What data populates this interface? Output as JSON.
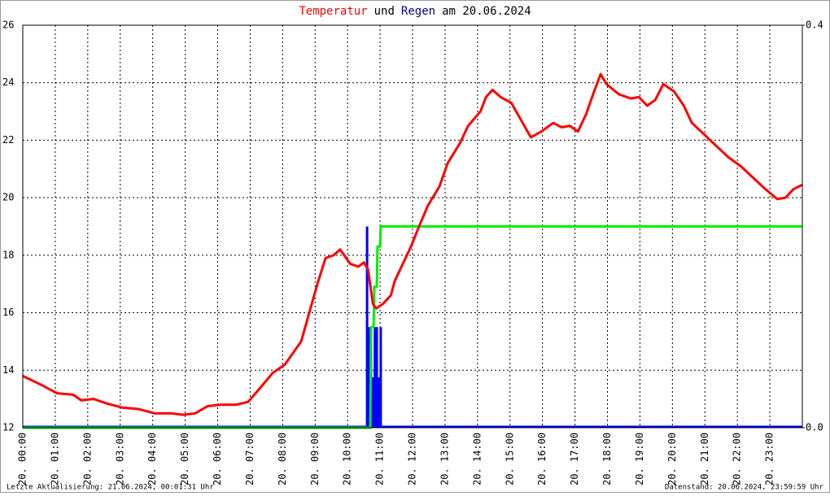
{
  "chart_data": {
    "type": "line",
    "title_parts": [
      "Temperatur",
      "und",
      "Regen",
      "am 20.06.2024"
    ],
    "title_colors": [
      "#ff0000",
      "#000000",
      "#000080",
      "#000000"
    ],
    "footer_left": "Letzte Aktualisierung: 21.06.2024, 00:01:31 Uhr",
    "footer_right": "Datenstand: 20.06.2024, 23:59:59 Uhr",
    "xlim": [
      0,
      24
    ],
    "xticks": [
      {
        "value": 0,
        "label": "20. 00:00"
      },
      {
        "value": 1,
        "label": "20. 01:00"
      },
      {
        "value": 2,
        "label": "20. 02:00"
      },
      {
        "value": 3,
        "label": "20. 03:00"
      },
      {
        "value": 4,
        "label": "20. 04:00"
      },
      {
        "value": 5,
        "label": "20. 05:00"
      },
      {
        "value": 6,
        "label": "20. 06:00"
      },
      {
        "value": 7,
        "label": "20. 07:00"
      },
      {
        "value": 8,
        "label": "20. 08:00"
      },
      {
        "value": 9,
        "label": "20. 09:00"
      },
      {
        "value": 10,
        "label": "20. 10:00"
      },
      {
        "value": 11,
        "label": "20. 11:00"
      },
      {
        "value": 12,
        "label": "20. 12:00"
      },
      {
        "value": 13,
        "label": "20. 13:00"
      },
      {
        "value": 14,
        "label": "20. 14:00"
      },
      {
        "value": 15,
        "label": "20. 15:00"
      },
      {
        "value": 16,
        "label": "20. 16:00"
      },
      {
        "value": 17,
        "label": "20. 17:00"
      },
      {
        "value": 18,
        "label": "20. 18:00"
      },
      {
        "value": 19,
        "label": "20. 19:00"
      },
      {
        "value": 20,
        "label": "20. 20:00"
      },
      {
        "value": 21,
        "label": "20. 21:00"
      },
      {
        "value": 22,
        "label": "20. 22:00"
      },
      {
        "value": 23,
        "label": "20. 23:00"
      }
    ],
    "ylim": [
      12,
      26
    ],
    "yticks": [
      12,
      14,
      16,
      18,
      20,
      22,
      24,
      26
    ],
    "y2lim": [
      0,
      0.4
    ],
    "y2ticks": [
      {
        "value": 0,
        "label": "0.0"
      },
      0.4
    ],
    "grid": true,
    "series": [
      {
        "type": "line",
        "color": "#ff0000",
        "x": [
          0,
          0.55,
          1.05,
          1.55,
          1.8,
          2.18,
          2.56,
          3.06,
          3.56,
          4.06,
          4.56,
          4.94,
          5.31,
          5.69,
          6.07,
          6.57,
          6.94,
          7.32,
          7.69,
          8.07,
          8.32,
          8.57,
          8.82,
          9.07,
          9.32,
          9.57,
          9.77,
          10.08,
          10.33,
          10.5,
          10.63,
          10.78,
          10.88,
          11.08,
          11.33,
          11.45,
          11.7,
          11.95,
          12.2,
          12.46,
          12.83,
          13.08,
          13.46,
          13.71,
          14.09,
          14.26,
          14.46,
          14.71,
          15.04,
          15.34,
          15.64,
          15.96,
          16.33,
          16.59,
          16.84,
          17.09,
          17.34,
          17.59,
          17.79,
          17.97,
          18.35,
          18.72,
          18.97,
          19.22,
          19.47,
          19.72,
          20.05,
          20.35,
          20.6,
          20.98,
          21.35,
          21.73,
          22.1,
          22.48,
          22.86,
          23.23,
          23.48,
          23.73,
          24
        ],
        "values": [
          13.8,
          13.5,
          13.2,
          13.15,
          12.95,
          13.0,
          12.85,
          12.7,
          12.65,
          12.5,
          12.5,
          12.45,
          12.5,
          12.75,
          12.8,
          12.8,
          12.9,
          13.4,
          13.9,
          14.2,
          14.6,
          15.0,
          16.0,
          17.0,
          17.9,
          18.0,
          18.2,
          17.7,
          17.6,
          17.75,
          17.5,
          16.3,
          16.15,
          16.3,
          16.6,
          17.1,
          17.7,
          18.3,
          19.0,
          19.7,
          20.4,
          21.2,
          21.9,
          22.5,
          23.0,
          23.5,
          23.75,
          23.5,
          23.3,
          22.7,
          22.1,
          22.3,
          22.6,
          22.45,
          22.5,
          22.3,
          22.9,
          23.7,
          24.3,
          23.95,
          23.6,
          23.45,
          23.5,
          23.2,
          23.4,
          23.95,
          23.7,
          23.2,
          22.6,
          22.2,
          21.8,
          21.4,
          21.1,
          20.7,
          20.3,
          19.95,
          20.0,
          20.3,
          20.45
        ]
      },
      {
        "type": "bar",
        "axis": "y2",
        "color": "#0000ff",
        "x": [
          10.6,
          10.66,
          10.72,
          10.78,
          10.84,
          10.9,
          10.96,
          11.02
        ],
        "values": [
          0.2,
          0.1,
          0.1,
          0.05,
          0.1,
          0.1,
          0.05,
          0.1
        ]
      },
      {
        "type": "line",
        "axis": "y2",
        "color": "#00ee00",
        "x": [
          0,
          10.7,
          10.72,
          10.8,
          10.82,
          10.9,
          10.92,
          11.0,
          11.02,
          24
        ],
        "values": [
          0,
          0,
          0.1,
          0.1,
          0.14,
          0.14,
          0.18,
          0.18,
          0.2,
          0.2
        ]
      }
    ]
  }
}
